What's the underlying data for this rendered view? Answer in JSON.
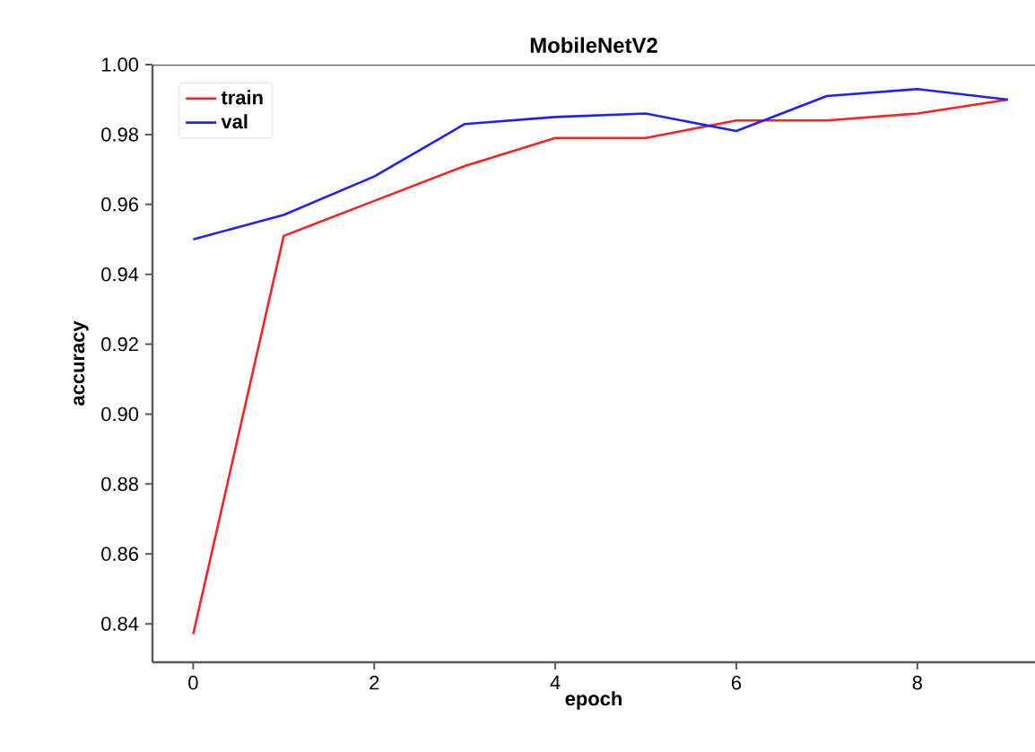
{
  "chart_data": {
    "type": "line",
    "title": "MobileNetV2",
    "xlabel": "epoch",
    "ylabel": "accuracy",
    "x": [
      0,
      1,
      2,
      3,
      4,
      5,
      6,
      7,
      8,
      9
    ],
    "series": [
      {
        "name": "train",
        "color": "#ff2020",
        "values": [
          0.837,
          0.951,
          0.961,
          0.971,
          0.979,
          0.979,
          0.984,
          0.984,
          0.986,
          0.99
        ]
      },
      {
        "name": "val",
        "color": "#2020ff",
        "values": [
          0.95,
          0.957,
          0.968,
          0.983,
          0.985,
          0.986,
          0.981,
          0.991,
          0.993,
          0.99
        ]
      }
    ],
    "xlim": [
      -0.45,
      9.3
    ],
    "ylim": [
      0.829,
      1.0
    ],
    "xticks": [
      0,
      2,
      4,
      6,
      8
    ],
    "yticks": [
      {
        "value": 0.84,
        "label": "0.84"
      },
      {
        "value": 0.86,
        "label": "0.86"
      },
      {
        "value": 0.88,
        "label": "0.88"
      },
      {
        "value": 0.9,
        "label": "0.90"
      },
      {
        "value": 0.92,
        "label": "0.92"
      },
      {
        "value": 0.94,
        "label": "0.94"
      },
      {
        "value": 0.96,
        "label": "0.96"
      },
      {
        "value": 0.98,
        "label": "0.98"
      },
      {
        "value": 1.0,
        "label": "1.00"
      }
    ],
    "legend": "top left",
    "grid": false,
    "marker": "none",
    "line_style": "solid"
  }
}
